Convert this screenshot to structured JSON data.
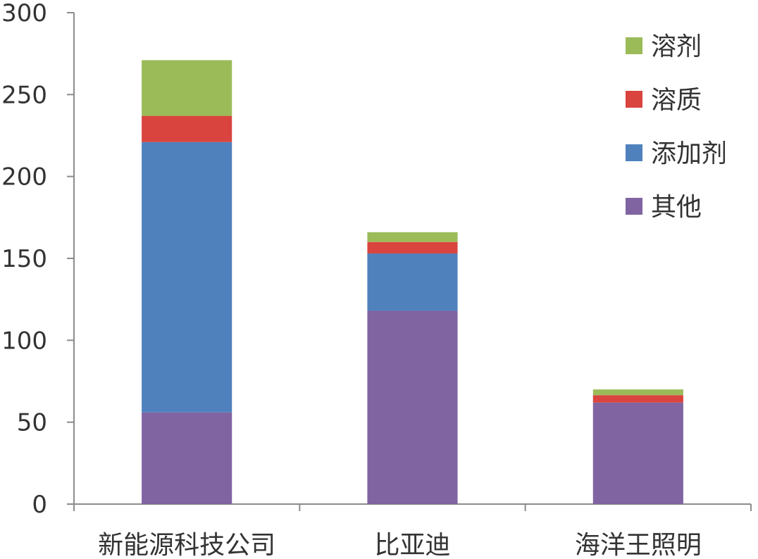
{
  "chart_data": {
    "type": "bar",
    "stacked": true,
    "title": "",
    "xlabel": "",
    "ylabel": "",
    "ylim": [
      0,
      300
    ],
    "yticks": [
      0,
      50,
      100,
      150,
      200,
      250,
      300
    ],
    "grid": false,
    "legend_position": "top-right",
    "categories": [
      "新能源科技公司",
      "比亚迪",
      "海洋王照明"
    ],
    "series": [
      {
        "name": "其他",
        "color": "#8064a2",
        "values": [
          56,
          118,
          62
        ]
      },
      {
        "name": "添加剂",
        "color": "#4f81bd",
        "values": [
          165,
          35,
          0
        ]
      },
      {
        "name": "溶质",
        "color": "#d9443f",
        "values": [
          16,
          7,
          4.5
        ]
      },
      {
        "name": "溶剂",
        "color": "#9bbb59",
        "values": [
          34,
          6,
          3.5
        ]
      }
    ],
    "legend_order": [
      "溶剂",
      "溶质",
      "添加剂",
      "其他"
    ]
  }
}
